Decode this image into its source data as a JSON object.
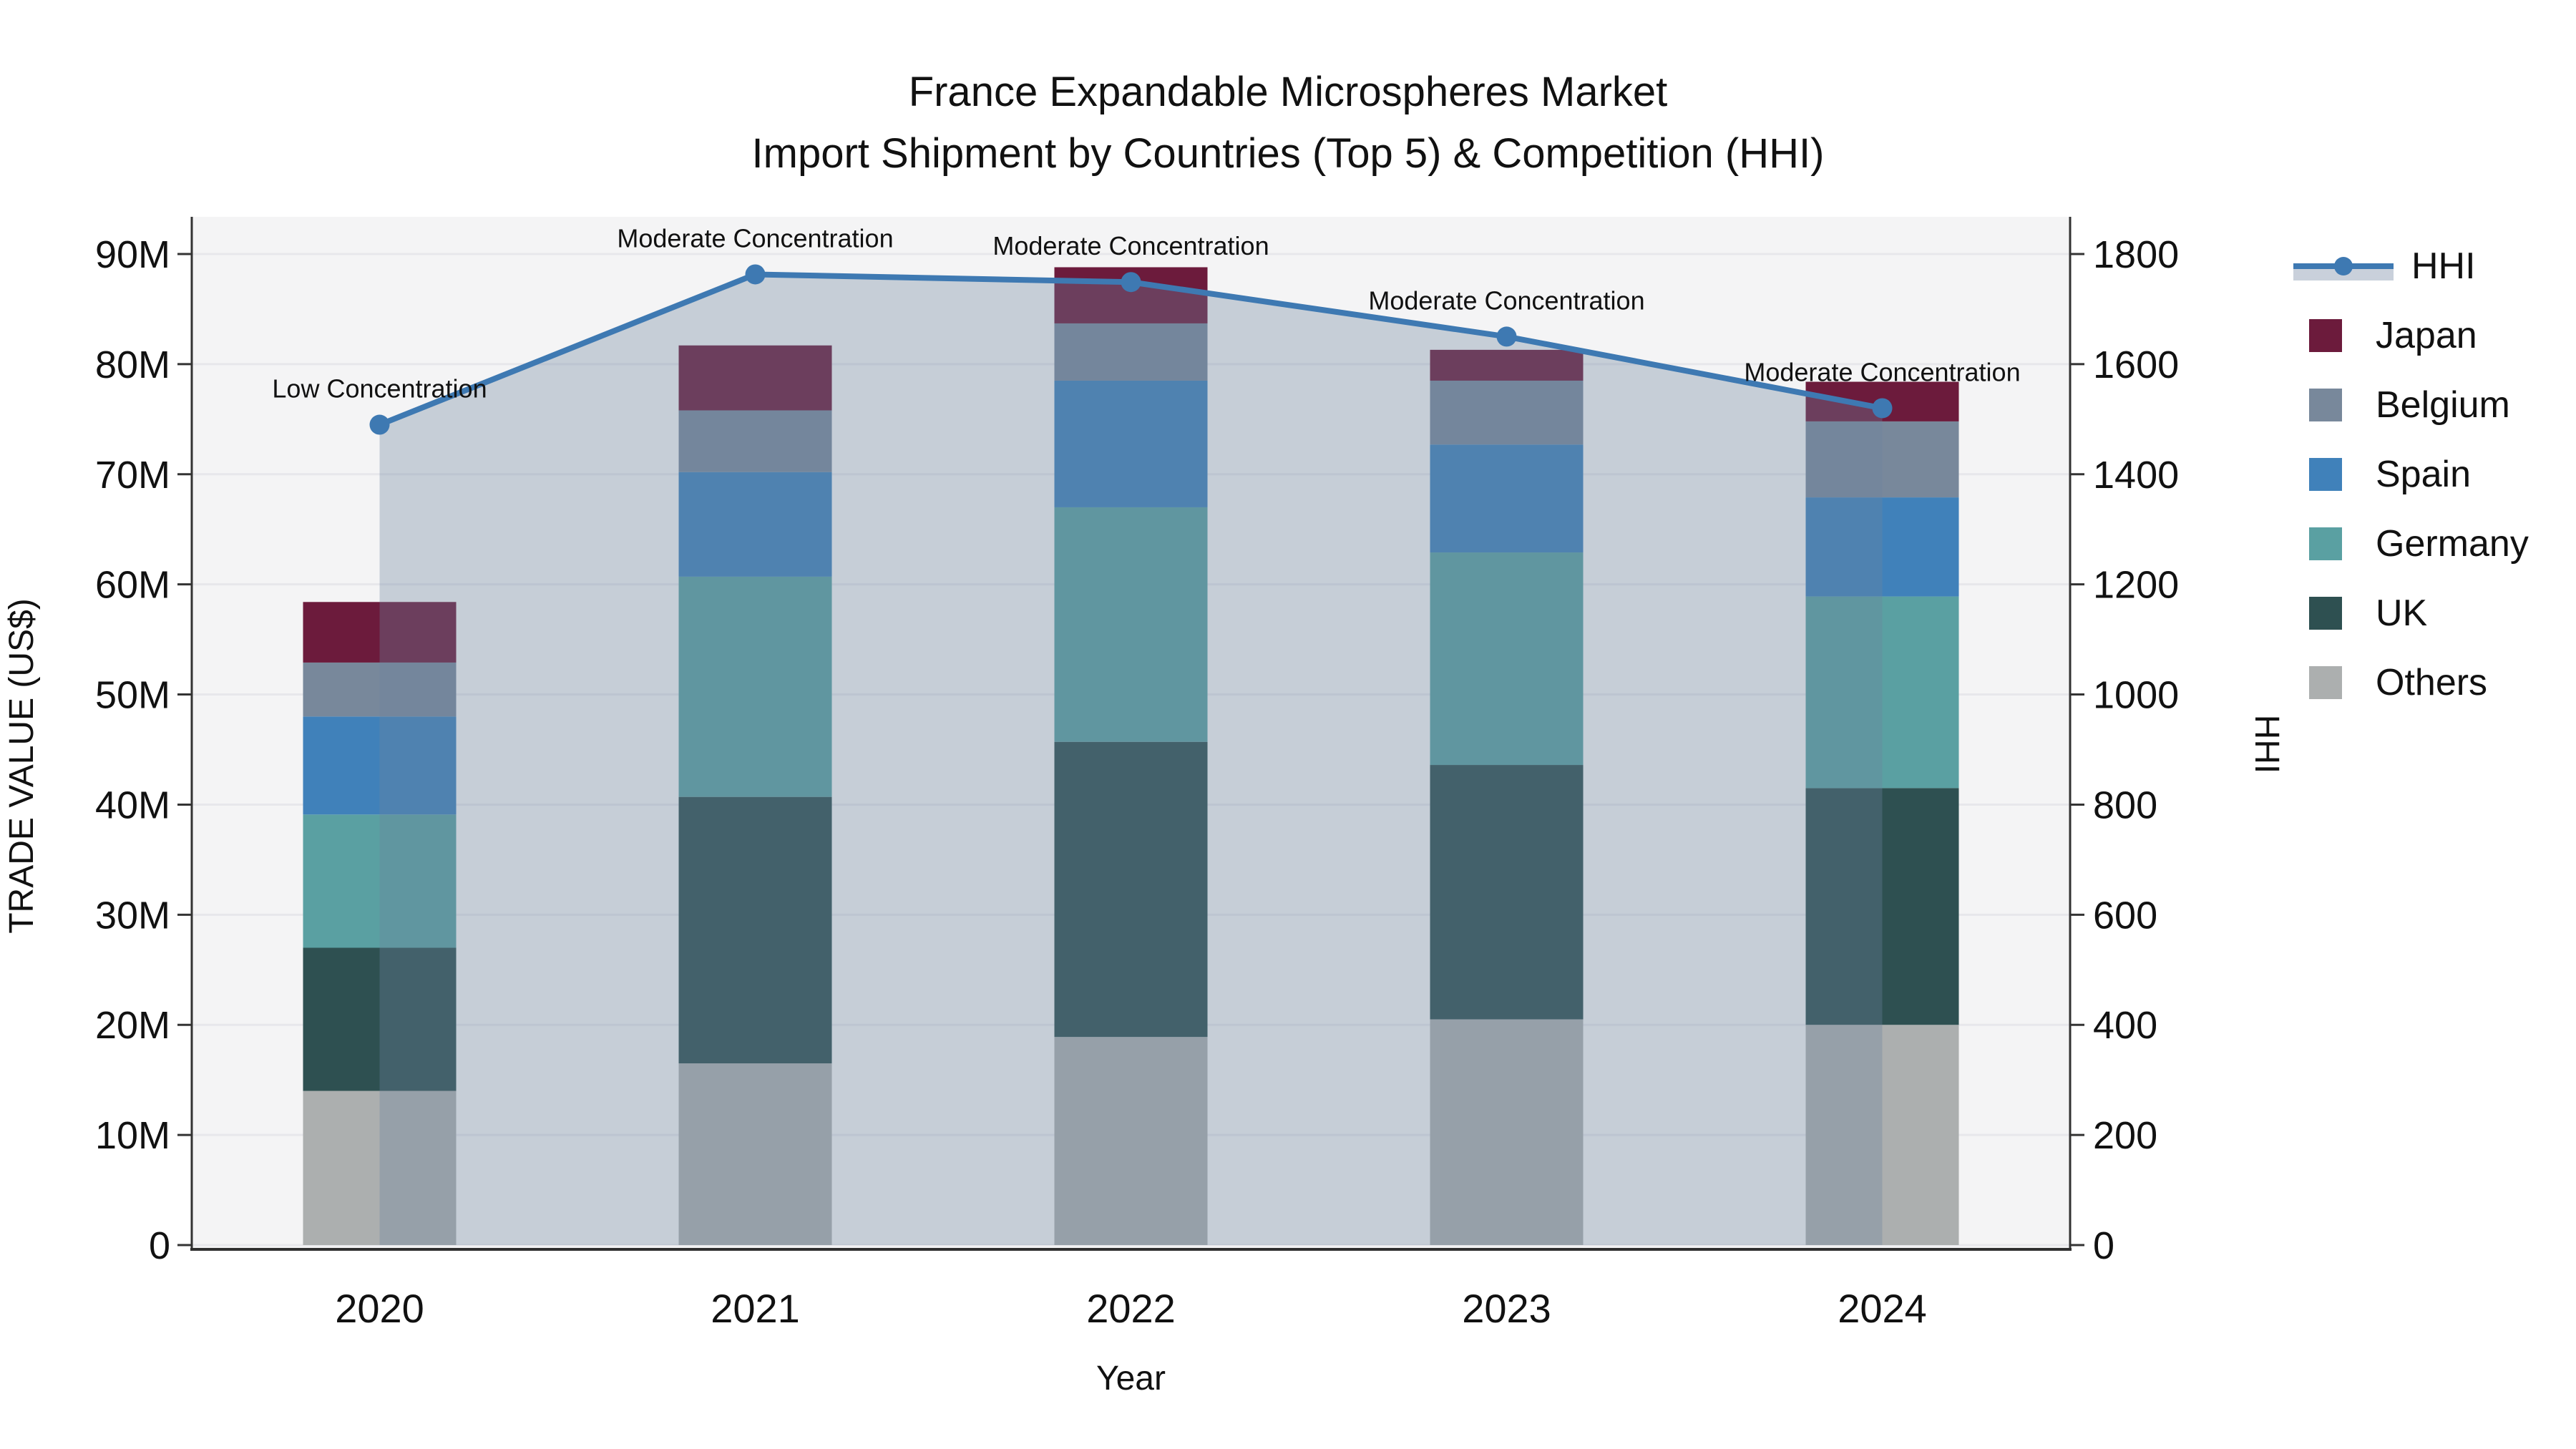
{
  "title": {
    "line1": "France Expandable Microspheres Market",
    "line2": "Import Shipment by Countries (Top 5) & Competition (HHI)"
  },
  "axes": {
    "y_left": {
      "title": "TRADE VALUE (US$)",
      "tick_labels": [
        "0",
        "10M",
        "20M",
        "30M",
        "40M",
        "50M",
        "60M",
        "70M",
        "80M",
        "90M"
      ],
      "min": 0,
      "max": 90,
      "unit": "M US$"
    },
    "y_right": {
      "title": "HHI",
      "tick_labels": [
        "0",
        "200",
        "400",
        "600",
        "800",
        "1000",
        "1200",
        "1400",
        "1600",
        "1800"
      ],
      "min": 0,
      "max": 1800
    },
    "x": {
      "title": "Year",
      "tick_labels": [
        "2020",
        "2021",
        "2022",
        "2023",
        "2024"
      ]
    }
  },
  "chart_data": {
    "type": "stacked_bar_with_line_area_combo",
    "categories": [
      "2020",
      "2021",
      "2022",
      "2023",
      "2024"
    ],
    "bar_value_unit": "millions US$",
    "stack_order_bottom_to_top": [
      "Others",
      "UK",
      "Germany",
      "Spain",
      "Belgium",
      "Japan"
    ],
    "series": [
      {
        "name": "Others",
        "color": "#ACAFAF",
        "values": [
          14.0,
          16.5,
          18.9,
          20.5,
          20.0
        ]
      },
      {
        "name": "UK",
        "color": "#2E5051",
        "values": [
          13.0,
          24.2,
          26.8,
          23.1,
          21.5
        ]
      },
      {
        "name": "Germany",
        "color": "#5AA0A2",
        "values": [
          12.1,
          20.0,
          21.3,
          19.3,
          17.4
        ]
      },
      {
        "name": "Spain",
        "color": "#4081BA",
        "values": [
          8.9,
          9.5,
          11.5,
          9.8,
          9.0
        ]
      },
      {
        "name": "Belgium",
        "color": "#78889B",
        "values": [
          4.9,
          5.6,
          5.2,
          5.8,
          6.9
        ]
      },
      {
        "name": "Japan",
        "color": "#6C1B3C",
        "values": [
          5.5,
          5.9,
          5.1,
          2.8,
          3.6
        ]
      }
    ],
    "line": {
      "name": "HHI",
      "color": "#3E79B2",
      "area_fill": "rgba(108,132,158,0.34)",
      "values": [
        1490,
        1763,
        1749,
        1650,
        1520
      ],
      "axis": "y_right"
    },
    "annotations": [
      {
        "x": "2020",
        "label": "Low Concentration"
      },
      {
        "x": "2021",
        "label": "Moderate Concentration"
      },
      {
        "x": "2022",
        "label": "Moderate Concentration"
      },
      {
        "x": "2023",
        "label": "Moderate Concentration"
      },
      {
        "x": "2024",
        "label": "Moderate Concentration"
      }
    ],
    "layout_hints": {
      "plot_background": "#F4F4F5",
      "gridline_color": "#E7E7EB",
      "grid": "horizontal only",
      "legend_position": "right",
      "bars_under_translucent_area_fill": true
    }
  },
  "legend": {
    "items": [
      {
        "label": "HHI",
        "type": "line"
      },
      {
        "label": "Japan",
        "type": "swatch",
        "color": "#6C1B3C"
      },
      {
        "label": "Belgium",
        "type": "swatch",
        "color": "#78889B"
      },
      {
        "label": "Spain",
        "type": "swatch",
        "color": "#4081BA"
      },
      {
        "label": "Germany",
        "type": "swatch",
        "color": "#5AA0A2"
      },
      {
        "label": "UK",
        "type": "swatch",
        "color": "#2E5051"
      },
      {
        "label": "Others",
        "type": "swatch",
        "color": "#ACAFAF"
      }
    ]
  }
}
